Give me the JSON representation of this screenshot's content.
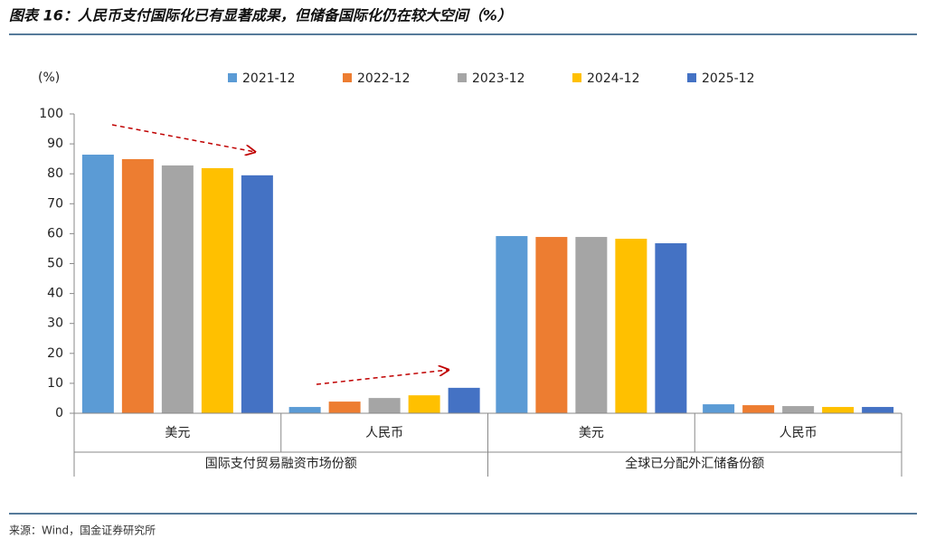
{
  "chart_data": {
    "type": "bar",
    "title": "图表 16：人民币支付国际化已有显著成果，但储备国际化仍在较大空间（%）",
    "y_label": "(%)",
    "source": "来源：Wind，国金证券研究所",
    "categories": [
      "美元",
      "人民币",
      "美元",
      "人民币"
    ],
    "category_groups": [
      "国际支付贸易融资市场份额",
      "全球已分配外汇储备份额"
    ],
    "series": [
      {
        "name": "2021-12",
        "color": "#5b9bd5",
        "values": [
          86.4,
          2.1,
          59.2,
          3.0
        ]
      },
      {
        "name": "2022-12",
        "color": "#ed7d31",
        "values": [
          84.9,
          3.9,
          58.9,
          2.7
        ]
      },
      {
        "name": "2023-12",
        "color": "#a5a5a5",
        "values": [
          82.8,
          5.1,
          58.9,
          2.4
        ]
      },
      {
        "name": "2024-12",
        "color": "#ffc000",
        "values": [
          81.9,
          6.0,
          58.3,
          2.1
        ]
      },
      {
        "name": "2025-12",
        "color": "#4472c4",
        "values": [
          79.5,
          8.5,
          56.8,
          2.1
        ]
      }
    ],
    "ylim": [
      0,
      100
    ],
    "yticks": [
      0,
      10,
      20,
      30,
      40,
      50,
      60,
      70,
      80,
      90,
      100
    ]
  }
}
